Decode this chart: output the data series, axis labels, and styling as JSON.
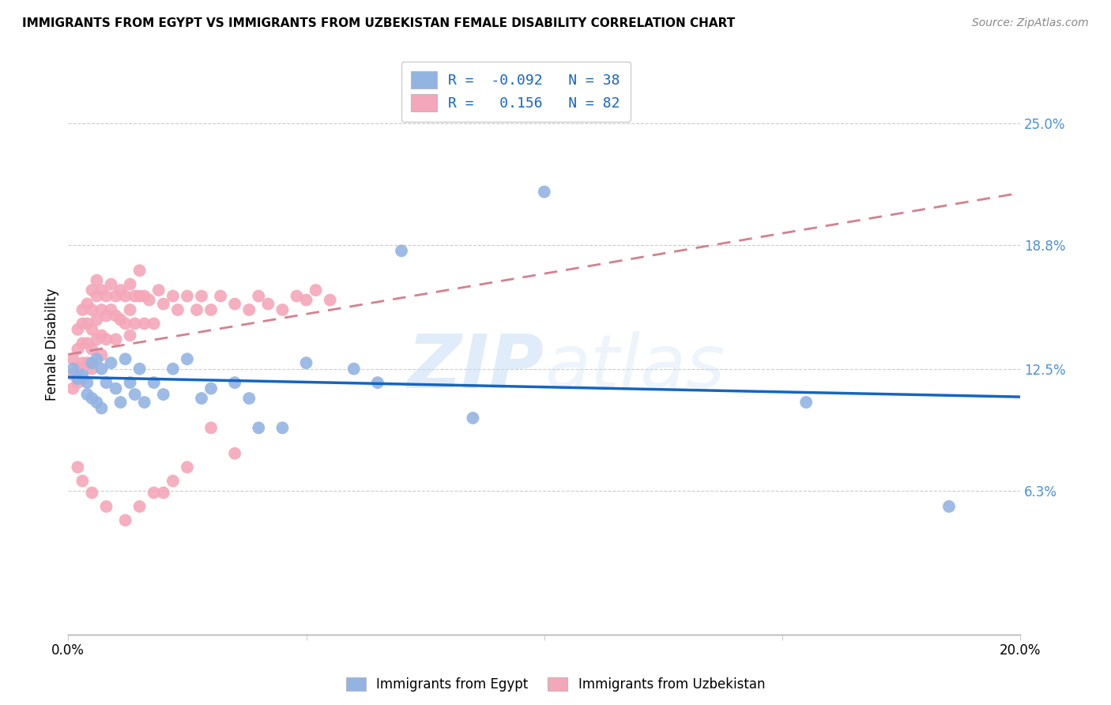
{
  "title": "IMMIGRANTS FROM EGYPT VS IMMIGRANTS FROM UZBEKISTAN FEMALE DISABILITY CORRELATION CHART",
  "source": "Source: ZipAtlas.com",
  "ylabel": "Female Disability",
  "xlim": [
    0.0,
    0.2
  ],
  "ylim": [
    -0.01,
    0.285
  ],
  "yticks": [
    0.063,
    0.125,
    0.188,
    0.25
  ],
  "ytick_labels": [
    "6.3%",
    "12.5%",
    "18.8%",
    "25.0%"
  ],
  "xticks": [
    0.0,
    0.05,
    0.1,
    0.15,
    0.2
  ],
  "xtick_labels": [
    "0.0%",
    "",
    "",
    "",
    "20.0%"
  ],
  "egypt_color": "#92b4e3",
  "uzbekistan_color": "#f4a7b9",
  "egypt_line_color": "#1565c0",
  "uzbekistan_line_color": "#d48090",
  "egypt_R": -0.092,
  "egypt_N": 38,
  "uzbekistan_R": 0.156,
  "uzbekistan_N": 82,
  "watermark_zip": "ZIP",
  "watermark_atlas": "atlas",
  "egypt_points_x": [
    0.001,
    0.002,
    0.003,
    0.004,
    0.004,
    0.005,
    0.005,
    0.006,
    0.006,
    0.007,
    0.007,
    0.008,
    0.009,
    0.01,
    0.011,
    0.012,
    0.013,
    0.014,
    0.015,
    0.016,
    0.018,
    0.02,
    0.022,
    0.025,
    0.028,
    0.03,
    0.035,
    0.038,
    0.04,
    0.045,
    0.05,
    0.06,
    0.065,
    0.07,
    0.085,
    0.1,
    0.155,
    0.185
  ],
  "egypt_points_y": [
    0.125,
    0.12,
    0.122,
    0.118,
    0.112,
    0.128,
    0.11,
    0.13,
    0.108,
    0.125,
    0.105,
    0.118,
    0.128,
    0.115,
    0.108,
    0.13,
    0.118,
    0.112,
    0.125,
    0.108,
    0.118,
    0.112,
    0.125,
    0.13,
    0.11,
    0.115,
    0.118,
    0.11,
    0.095,
    0.095,
    0.128,
    0.125,
    0.118,
    0.185,
    0.1,
    0.215,
    0.108,
    0.055
  ],
  "uzbekistan_points_x": [
    0.001,
    0.001,
    0.001,
    0.002,
    0.002,
    0.002,
    0.002,
    0.003,
    0.003,
    0.003,
    0.003,
    0.003,
    0.004,
    0.004,
    0.004,
    0.004,
    0.005,
    0.005,
    0.005,
    0.005,
    0.005,
    0.006,
    0.006,
    0.006,
    0.006,
    0.007,
    0.007,
    0.007,
    0.007,
    0.008,
    0.008,
    0.008,
    0.009,
    0.009,
    0.01,
    0.01,
    0.01,
    0.011,
    0.011,
    0.012,
    0.012,
    0.013,
    0.013,
    0.013,
    0.014,
    0.014,
    0.015,
    0.015,
    0.016,
    0.016,
    0.017,
    0.018,
    0.019,
    0.02,
    0.022,
    0.023,
    0.025,
    0.027,
    0.028,
    0.03,
    0.032,
    0.035,
    0.038,
    0.04,
    0.042,
    0.045,
    0.048,
    0.05,
    0.052,
    0.055,
    0.03,
    0.035,
    0.02,
    0.022,
    0.025,
    0.015,
    0.018,
    0.012,
    0.008,
    0.005,
    0.003,
    0.002
  ],
  "uzbekistan_points_y": [
    0.13,
    0.122,
    0.115,
    0.145,
    0.135,
    0.125,
    0.118,
    0.155,
    0.148,
    0.138,
    0.128,
    0.12,
    0.158,
    0.148,
    0.138,
    0.128,
    0.165,
    0.155,
    0.145,
    0.135,
    0.125,
    0.17,
    0.162,
    0.15,
    0.14,
    0.165,
    0.155,
    0.142,
    0.132,
    0.162,
    0.152,
    0.14,
    0.168,
    0.155,
    0.162,
    0.152,
    0.14,
    0.165,
    0.15,
    0.162,
    0.148,
    0.168,
    0.155,
    0.142,
    0.162,
    0.148,
    0.175,
    0.162,
    0.162,
    0.148,
    0.16,
    0.148,
    0.165,
    0.158,
    0.162,
    0.155,
    0.162,
    0.155,
    0.162,
    0.155,
    0.162,
    0.158,
    0.155,
    0.162,
    0.158,
    0.155,
    0.162,
    0.16,
    0.165,
    0.16,
    0.095,
    0.082,
    0.062,
    0.068,
    0.075,
    0.055,
    0.062,
    0.048,
    0.055,
    0.062,
    0.068,
    0.075
  ]
}
